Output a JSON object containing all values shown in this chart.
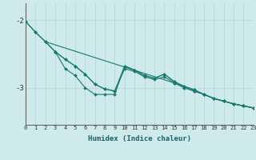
{
  "title": "",
  "xlabel": "Humidex (Indice chaleur)",
  "ylabel": "",
  "background_color": "#ceeaea",
  "plot_bg_color": "#ceeaea",
  "grid_color": "#b8d8d8",
  "line_color": "#1a7a6e",
  "yticks": [
    -2,
    -3
  ],
  "ylim": [
    -3.55,
    -1.75
  ],
  "xlim": [
    0,
    23
  ],
  "xtick_labels": [
    "0",
    "1",
    "2",
    "3",
    "4",
    "5",
    "6",
    "7",
    "8",
    "9",
    "10",
    "11",
    "12",
    "13",
    "14",
    "15",
    "16",
    "17",
    "18",
    "19",
    "20",
    "21",
    "22",
    "23"
  ],
  "series": [
    [
      0,
      -2.02,
      1,
      -2.18,
      2,
      -2.32,
      3,
      -2.47,
      4,
      -2.58,
      5,
      -2.68,
      6,
      -2.8,
      7,
      -2.95,
      8,
      -3.02,
      9,
      -3.05,
      10,
      -2.72,
      11,
      -2.76,
      12,
      -2.84,
      13,
      -2.88,
      14,
      -2.84,
      15,
      -2.93,
      16,
      -3.0,
      17,
      -3.05,
      18,
      -3.1,
      19,
      -3.16,
      20,
      -3.2,
      21,
      -3.24,
      22,
      -3.27,
      23,
      -3.3
    ],
    [
      2,
      -2.32,
      15,
      -2.93,
      16,
      -3.0,
      17,
      -3.05,
      18,
      -3.1,
      19,
      -3.16,
      20,
      -3.2,
      21,
      -3.24,
      22,
      -3.27,
      23,
      -3.3
    ],
    [
      3,
      -2.47,
      4,
      -2.72,
      5,
      -2.82,
      6,
      -3.0,
      7,
      -3.1,
      8,
      -3.1,
      9,
      -3.1,
      10,
      -2.68,
      11,
      -2.74,
      12,
      -2.82,
      13,
      -2.86,
      14,
      -2.8,
      15,
      -2.91,
      16,
      -2.98,
      17,
      -3.03,
      18,
      -3.1,
      19,
      -3.16,
      20,
      -3.2,
      21,
      -3.24,
      22,
      -3.27,
      23,
      -3.3
    ],
    [
      0,
      -2.02,
      1,
      -2.18,
      2,
      -2.32,
      3,
      -2.47,
      4,
      -2.58,
      5,
      -2.68,
      6,
      -2.8,
      7,
      -2.95,
      8,
      -3.02,
      9,
      -3.05,
      10,
      -2.68,
      11,
      -2.74,
      12,
      -2.82,
      13,
      -2.86,
      14,
      -2.8,
      15,
      -2.91,
      16,
      -2.98,
      17,
      -3.03,
      18,
      -3.1,
      19,
      -3.16,
      20,
      -3.2,
      21,
      -3.24,
      22,
      -3.27,
      23,
      -3.3
    ]
  ],
  "series_raw": [
    {
      "x": [
        0,
        1,
        2,
        3,
        4,
        5,
        6,
        7,
        8,
        9,
        10,
        11,
        12,
        13,
        14,
        15,
        16,
        17,
        18,
        19,
        20,
        21,
        22,
        23
      ],
      "y": [
        -2.02,
        -2.18,
        -2.32,
        -2.47,
        -2.58,
        -2.68,
        -2.8,
        -2.95,
        -3.02,
        -3.05,
        -2.72,
        -2.76,
        -2.84,
        -2.88,
        -2.84,
        -2.93,
        -3.0,
        -3.05,
        -3.1,
        -3.16,
        -3.2,
        -3.24,
        -3.27,
        -3.3
      ]
    },
    {
      "x": [
        2,
        15,
        16,
        17,
        18,
        19,
        20,
        21,
        22,
        23
      ],
      "y": [
        -2.32,
        -2.93,
        -3.0,
        -3.05,
        -3.1,
        -3.16,
        -3.2,
        -3.24,
        -3.27,
        -3.3
      ]
    },
    {
      "x": [
        3,
        4,
        5,
        6,
        7,
        8,
        9,
        10,
        11,
        12,
        13,
        14,
        15,
        16,
        17,
        18,
        19,
        20,
        21,
        22,
        23
      ],
      "y": [
        -2.47,
        -2.72,
        -2.82,
        -3.0,
        -3.1,
        -3.1,
        -3.1,
        -2.68,
        -2.74,
        -2.82,
        -2.86,
        -2.8,
        -2.91,
        -2.98,
        -3.03,
        -3.1,
        -3.16,
        -3.2,
        -3.24,
        -3.27,
        -3.3
      ]
    },
    {
      "x": [
        0,
        1,
        2,
        3,
        4,
        5,
        6,
        7,
        8,
        9,
        10,
        11,
        12,
        13,
        14,
        15,
        16,
        17,
        18,
        19,
        20,
        21,
        22,
        23
      ],
      "y": [
        -2.02,
        -2.18,
        -2.32,
        -2.47,
        -2.58,
        -2.68,
        -2.8,
        -2.95,
        -3.02,
        -3.05,
        -2.68,
        -2.74,
        -2.82,
        -2.86,
        -2.8,
        -2.91,
        -2.98,
        -3.03,
        -3.1,
        -3.16,
        -3.2,
        -3.24,
        -3.27,
        -3.3
      ]
    }
  ]
}
